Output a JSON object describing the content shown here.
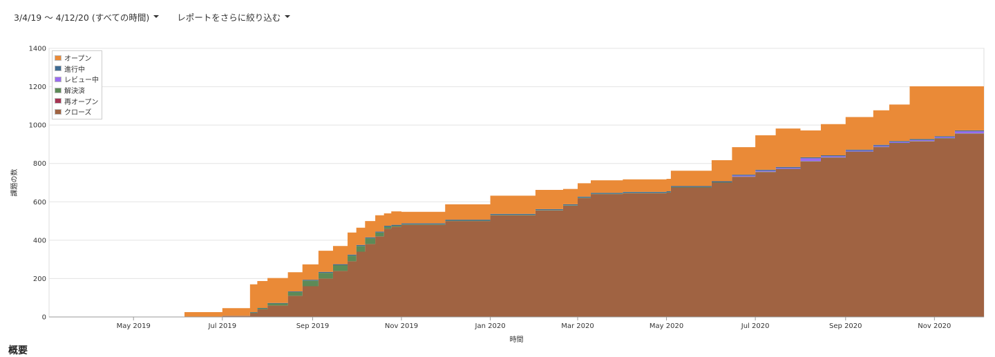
{
  "toolbar": {
    "date_range_label": "3/4/19 〜 4/12/20 (すべての時間)",
    "filter_label": "レポートをさらに絞り込む"
  },
  "summary_heading": "概要",
  "chart_data": {
    "type": "area",
    "stacked": true,
    "step": true,
    "xlabel": "時間",
    "ylabel": "課題の数",
    "ylim": [
      0,
      1400
    ],
    "xlim": [
      "2019-03-04",
      "2020-12-05"
    ],
    "yticks": [
      0,
      200,
      400,
      600,
      800,
      1000,
      1200,
      1400
    ],
    "xticks": [
      {
        "date": "2019-05-01",
        "label": "May 2019"
      },
      {
        "date": "2019-07-01",
        "label": "Jul 2019"
      },
      {
        "date": "2019-09-01",
        "label": "Sep 2019"
      },
      {
        "date": "2019-11-01",
        "label": "Nov 2019"
      },
      {
        "date": "2020-01-01",
        "label": "Jan 2020"
      },
      {
        "date": "2020-03-01",
        "label": "Mar 2020"
      },
      {
        "date": "2020-05-01",
        "label": "May 2020"
      },
      {
        "date": "2020-07-01",
        "label": "Jul 2020"
      },
      {
        "date": "2020-09-01",
        "label": "Sep 2020"
      },
      {
        "date": "2020-11-01",
        "label": "Nov 2020"
      }
    ],
    "grid": true,
    "legend_position": "top-left",
    "x": [
      "2019-03-04",
      "2019-06-05",
      "2019-07-01",
      "2019-07-20",
      "2019-07-25",
      "2019-08-01",
      "2019-08-15",
      "2019-08-25",
      "2019-09-05",
      "2019-09-15",
      "2019-09-25",
      "2019-10-01",
      "2019-10-07",
      "2019-10-14",
      "2019-10-20",
      "2019-10-25",
      "2019-11-01",
      "2019-12-01",
      "2020-01-01",
      "2020-02-01",
      "2020-02-20",
      "2020-03-01",
      "2020-03-10",
      "2020-04-01",
      "2020-05-01",
      "2020-05-04",
      "2020-06-01",
      "2020-06-15",
      "2020-07-01",
      "2020-07-15",
      "2020-08-01",
      "2020-08-15",
      "2020-09-01",
      "2020-09-20",
      "2020-10-01",
      "2020-10-15",
      "2020-11-01",
      "2020-11-15",
      "2020-12-05"
    ],
    "series": [
      {
        "name": "クローズ",
        "color": "#a06342",
        "values": [
          0,
          0,
          5,
          20,
          40,
          60,
          110,
          160,
          200,
          240,
          290,
          340,
          380,
          420,
          460,
          470,
          480,
          500,
          530,
          555,
          580,
          620,
          640,
          645,
          648,
          675,
          700,
          730,
          755,
          770,
          810,
          830,
          860,
          885,
          905,
          915,
          930,
          955,
          1000
        ]
      },
      {
        "name": "再オープン",
        "color": "#a63352",
        "values": [
          0,
          0,
          0,
          0,
          0,
          0,
          0,
          0,
          0,
          0,
          0,
          0,
          0,
          0,
          0,
          0,
          0,
          0,
          0,
          0,
          0,
          0,
          0,
          0,
          0,
          0,
          0,
          0,
          0,
          0,
          0,
          0,
          0,
          0,
          0,
          0,
          0,
          0,
          0
        ]
      },
      {
        "name": "解決済",
        "color": "#5d8a57",
        "values": [
          0,
          0,
          0,
          3,
          5,
          10,
          20,
          30,
          30,
          30,
          30,
          30,
          30,
          20,
          10,
          5,
          3,
          2,
          2,
          2,
          2,
          2,
          2,
          2,
          2,
          2,
          2,
          2,
          2,
          2,
          2,
          2,
          2,
          2,
          2,
          2,
          2,
          2,
          2
        ]
      },
      {
        "name": "レビュー中",
        "color": "#9a6bf0",
        "values": [
          0,
          0,
          0,
          0,
          0,
          0,
          0,
          0,
          0,
          0,
          0,
          0,
          0,
          0,
          0,
          0,
          0,
          0,
          0,
          0,
          0,
          0,
          0,
          0,
          0,
          0,
          0,
          5,
          5,
          5,
          15,
          5,
          5,
          5,
          5,
          5,
          5,
          10,
          10
        ]
      },
      {
        "name": "進行中",
        "color": "#3e6b93",
        "values": [
          0,
          0,
          1,
          2,
          2,
          3,
          3,
          4,
          5,
          5,
          5,
          5,
          5,
          5,
          5,
          5,
          5,
          5,
          5,
          5,
          5,
          5,
          5,
          5,
          5,
          5,
          5,
          5,
          5,
          5,
          5,
          5,
          5,
          5,
          5,
          5,
          5,
          5,
          8
        ]
      },
      {
        "name": "オープン",
        "color": "#ea8a37",
        "values": [
          2,
          25,
          40,
          145,
          140,
          130,
          100,
          80,
          110,
          95,
          115,
          90,
          85,
          85,
          65,
          70,
          60,
          80,
          95,
          100,
          80,
          70,
          65,
          65,
          65,
          80,
          110,
          143,
          180,
          200,
          140,
          163,
          170,
          180,
          190,
          275,
          260,
          230,
          200
        ]
      }
    ]
  }
}
